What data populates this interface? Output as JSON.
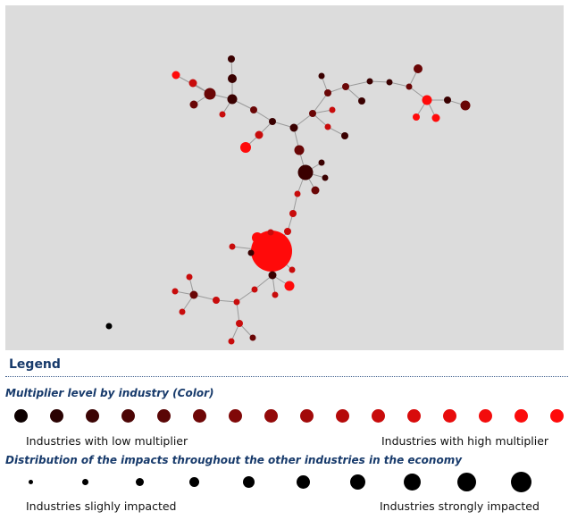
{
  "legend": {
    "title": "Legend",
    "color_section": {
      "title": "Multiplier level by industry (Color)",
      "colors": [
        "#0d0000",
        "#2a0202",
        "#3c0404",
        "#4c0505",
        "#5a0606",
        "#6e0707",
        "#800808",
        "#930909",
        "#a20a0a",
        "#b50a0a",
        "#c80b0b",
        "#d80b0b",
        "#e80c0c",
        "#f30c0c",
        "#fb0c0c",
        "#ff0a0a"
      ],
      "low_label": "Industries with low multiplier",
      "high_label": "Industries with high multiplier"
    },
    "size_section": {
      "title": "Distribution of the impacts throughout the other industries in the economy",
      "low_label": "Industries slighly impacted",
      "high_label": "Industries strongly impacted"
    }
  },
  "graph": {
    "node_colors": {
      "dark": "#3a0000",
      "darkred": "#6a0606",
      "maroon": "#8a0a0a",
      "red": "#c80c0c",
      "bright": "#ff0a0a",
      "black": "#000000"
    },
    "edge_color": "#9a9a9a"
  }
}
